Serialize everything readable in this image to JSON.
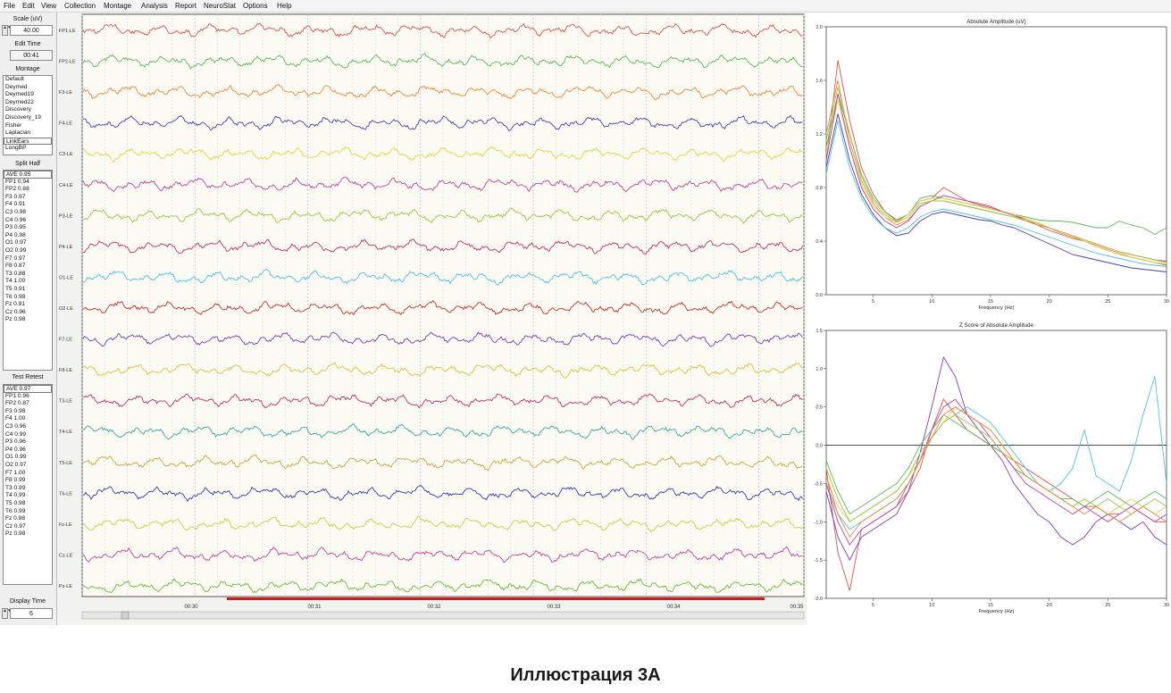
{
  "menu": [
    "File",
    "Edit",
    "View",
    "Collection",
    "Montage",
    "Analysis",
    "Report",
    "NeuroStat",
    "Options",
    "Help"
  ],
  "left_panel": {
    "scale_label": "Scale (uV)",
    "scale_value": "40.00",
    "edit_time_label": "Edit Time",
    "edit_time_value": "00:41",
    "montage_label": "Montage",
    "montages": [
      "Default",
      "Deymed",
      "Deymed19",
      "Deymed22",
      "Discovery",
      "Discovery_19",
      "Fisher",
      "Laplacian",
      "LinkEars",
      "LongBP"
    ],
    "montage_selected": 8,
    "split_half_label": "Split Half",
    "split_half": [
      "AVE 0.95",
      "FP1 0.94",
      "FP2 0.88",
      "F3 0.97",
      "F4 0.91",
      "C3 0.98",
      "C4 0.96",
      "P3 0.95",
      "P4 0.98",
      "O1 0.97",
      "O2 0.99",
      "F7 0.97",
      "F8 0.87",
      "T3 0.88",
      "T4 1.00",
      "T5 0.91",
      "T6 0.98",
      "Fz 0.91",
      "Cz 0.96",
      "Pz 0.98"
    ],
    "test_retest_label": "Test Retest",
    "test_retest": [
      "AVE 0.97",
      "FP1 0.96",
      "FP2 0.87",
      "F3 0.98",
      "F4 1.00",
      "C3 0.96",
      "C4 0.99",
      "P3 0.96",
      "P4 0.96",
      "O1 0.99",
      "O2 0.97",
      "F7 1.00",
      "F8 0.99",
      "T3 0.99",
      "T4 0.99",
      "T5 0.98",
      "T6 0.99",
      "Fz 0.98",
      "Cz 0.97",
      "Pz 0.98"
    ],
    "display_time_label": "Display Time",
    "display_time_value": "6"
  },
  "eeg": {
    "channels": [
      {
        "label": "FP1-LE",
        "color": "#d9534f"
      },
      {
        "label": "FP2-LE",
        "color": "#5cb85c"
      },
      {
        "label": "F3-LE",
        "color": "#e8893c"
      },
      {
        "label": "F4-LE",
        "color": "#4a3fb0"
      },
      {
        "label": "C3-LE",
        "color": "#e0d640"
      },
      {
        "label": "C4-LE",
        "color": "#c2449a"
      },
      {
        "label": "P3-LE",
        "color": "#9bc63c"
      },
      {
        "label": "P4-LE",
        "color": "#c0306a"
      },
      {
        "label": "O1-LE",
        "color": "#4fc3d9"
      },
      {
        "label": "O2-LE",
        "color": "#c4302b"
      },
      {
        "label": "F7-LE",
        "color": "#7a3fb5"
      },
      {
        "label": "F8-LE",
        "color": "#d9c23c"
      },
      {
        "label": "T3-LE",
        "color": "#c0306a"
      },
      {
        "label": "T4-LE",
        "color": "#3aa8a0"
      },
      {
        "label": "T5-LE",
        "color": "#c9a83c"
      },
      {
        "label": "T6-LE",
        "color": "#3a3ab0"
      },
      {
        "label": "Fz-LE",
        "color": "#bcd640"
      },
      {
        "label": "Cz-LE",
        "color": "#c2449a"
      },
      {
        "label": "Pz-LE",
        "color": "#6cb83c"
      }
    ],
    "time_ticks": [
      "00:30",
      "00:31",
      "00:32",
      "00:33",
      "00:34",
      "00:35"
    ]
  },
  "chart_data": [
    {
      "type": "line",
      "title": "Absolute Amplitude (uV)",
      "xlabel": "Frequency (Hz)",
      "ylabel": "",
      "xlim": [
        1,
        30
      ],
      "ylim": [
        0,
        2.0
      ],
      "x_ticks": [
        5,
        10,
        15,
        20,
        25,
        30
      ],
      "y_ticks": [
        "0.0",
        "0.4",
        "0.8",
        "1.2",
        "1.6",
        "2.0"
      ],
      "x": [
        1,
        2,
        3,
        4,
        5,
        6,
        7,
        8,
        9,
        10,
        11,
        12,
        13,
        14,
        15,
        16,
        17,
        18,
        19,
        20,
        21,
        22,
        23,
        24,
        25,
        26,
        27,
        28,
        29,
        30
      ],
      "series": [
        {
          "color": "#d9534f",
          "values": [
            1.0,
            1.75,
            1.3,
            0.95,
            0.75,
            0.62,
            0.55,
            0.6,
            0.7,
            0.72,
            0.8,
            0.75,
            0.7,
            0.68,
            0.66,
            0.62,
            0.6,
            0.56,
            0.52,
            0.48,
            0.45,
            0.42,
            0.4,
            0.36,
            0.33,
            0.3,
            0.28,
            0.26,
            0.24,
            0.22
          ]
        },
        {
          "color": "#5cb85c",
          "values": [
            1.1,
            1.5,
            1.2,
            0.9,
            0.72,
            0.62,
            0.56,
            0.6,
            0.72,
            0.74,
            0.72,
            0.7,
            0.68,
            0.66,
            0.64,
            0.62,
            0.6,
            0.58,
            0.56,
            0.55,
            0.55,
            0.54,
            0.52,
            0.5,
            0.5,
            0.55,
            0.52,
            0.5,
            0.45,
            0.5
          ]
        },
        {
          "color": "#e8893c",
          "values": [
            1.2,
            1.6,
            1.15,
            0.85,
            0.68,
            0.58,
            0.52,
            0.56,
            0.66,
            0.7,
            0.7,
            0.68,
            0.66,
            0.64,
            0.62,
            0.6,
            0.58,
            0.55,
            0.52,
            0.5,
            0.46,
            0.43,
            0.4,
            0.37,
            0.34,
            0.31,
            0.28,
            0.26,
            0.24,
            0.22
          ]
        },
        {
          "color": "#4a3fb0",
          "values": [
            0.95,
            1.35,
            1.0,
            0.75,
            0.6,
            0.5,
            0.44,
            0.46,
            0.55,
            0.6,
            0.62,
            0.6,
            0.58,
            0.56,
            0.55,
            0.52,
            0.5,
            0.46,
            0.42,
            0.38,
            0.34,
            0.3,
            0.28,
            0.26,
            0.24,
            0.22,
            0.2,
            0.19,
            0.18,
            0.17
          ]
        },
        {
          "color": "#e0d640",
          "values": [
            1.05,
            1.45,
            1.1,
            0.82,
            0.66,
            0.58,
            0.54,
            0.6,
            0.7,
            0.72,
            0.72,
            0.7,
            0.68,
            0.66,
            0.64,
            0.62,
            0.6,
            0.57,
            0.54,
            0.5,
            0.47,
            0.44,
            0.4,
            0.36,
            0.33,
            0.3,
            0.28,
            0.26,
            0.24,
            0.23
          ]
        },
        {
          "color": "#c2449a",
          "values": [
            1.0,
            1.5,
            1.1,
            0.8,
            0.64,
            0.55,
            0.5,
            0.55,
            0.66,
            0.7,
            0.74,
            0.72,
            0.7,
            0.67,
            0.65,
            0.62,
            0.59,
            0.56,
            0.53,
            0.5,
            0.47,
            0.44,
            0.41,
            0.38,
            0.35,
            0.32,
            0.3,
            0.28,
            0.26,
            0.25
          ]
        },
        {
          "color": "#9bc63c",
          "values": [
            1.15,
            1.55,
            1.2,
            0.88,
            0.7,
            0.6,
            0.54,
            0.58,
            0.68,
            0.7,
            0.7,
            0.68,
            0.66,
            0.64,
            0.62,
            0.6,
            0.58,
            0.56,
            0.53,
            0.5,
            0.47,
            0.44,
            0.41,
            0.38,
            0.35,
            0.32,
            0.3,
            0.28,
            0.26,
            0.24
          ]
        },
        {
          "color": "#4fc3d9",
          "values": [
            0.9,
            1.3,
            0.95,
            0.72,
            0.58,
            0.5,
            0.46,
            0.5,
            0.58,
            0.62,
            0.64,
            0.62,
            0.6,
            0.58,
            0.56,
            0.54,
            0.52,
            0.49,
            0.46,
            0.43,
            0.4,
            0.37,
            0.34,
            0.31,
            0.29,
            0.27,
            0.25,
            0.23,
            0.22,
            0.21
          ]
        }
      ]
    },
    {
      "type": "line",
      "title": "Z Score of Absolute Amplitude",
      "xlabel": "Frequency (Hz)",
      "ylabel": "",
      "xlim": [
        1,
        30
      ],
      "ylim": [
        -2.0,
        1.5
      ],
      "x_ticks": [
        5,
        10,
        15,
        20,
        25,
        30
      ],
      "y_ticks": [
        "1.5",
        "1.0",
        "0.5",
        "0.0",
        "-0.5",
        "-1.0",
        "-1.5",
        "-2.0"
      ],
      "x": [
        1,
        2,
        3,
        4,
        5,
        6,
        7,
        8,
        9,
        10,
        11,
        12,
        13,
        14,
        15,
        16,
        17,
        18,
        19,
        20,
        21,
        22,
        23,
        24,
        25,
        26,
        27,
        28,
        29,
        30
      ],
      "series": [
        {
          "color": "#d9534f",
          "values": [
            -0.3,
            -1.4,
            -1.9,
            -1.1,
            -1.0,
            -0.9,
            -0.8,
            -0.6,
            -0.3,
            0.2,
            0.6,
            0.4,
            0.2,
            0.1,
            0.0,
            -0.1,
            -0.2,
            -0.3,
            -0.4,
            -0.5,
            -0.6,
            -0.7,
            -0.8,
            -0.8,
            -0.9,
            -0.9,
            -0.8,
            -0.9,
            -1.0,
            -1.0
          ]
        },
        {
          "color": "#7a3fb5",
          "values": [
            -0.6,
            -1.2,
            -1.5,
            -1.2,
            -1.1,
            -1.0,
            -0.9,
            -0.6,
            -0.1,
            0.5,
            1.15,
            0.9,
            0.4,
            0.2,
            0.0,
            -0.2,
            -0.5,
            -0.7,
            -0.9,
            -1.0,
            -1.2,
            -1.3,
            -1.2,
            -1.0,
            -0.9,
            -1.0,
            -1.1,
            -1.0,
            -1.2,
            -1.3
          ]
        },
        {
          "color": "#4fc3d9",
          "values": [
            -0.5,
            -0.9,
            -1.1,
            -1.0,
            -0.9,
            -0.8,
            -0.7,
            -0.5,
            -0.2,
            0.1,
            0.3,
            0.4,
            0.5,
            0.4,
            0.3,
            0.1,
            -0.1,
            -0.3,
            -0.5,
            -0.6,
            -0.5,
            -0.3,
            0.2,
            -0.4,
            -0.5,
            -0.6,
            -0.2,
            0.4,
            0.9,
            -0.5
          ]
        },
        {
          "color": "#e0d640",
          "values": [
            -0.4,
            -0.8,
            -1.0,
            -0.9,
            -0.8,
            -0.7,
            -0.6,
            -0.4,
            -0.2,
            0.1,
            0.3,
            0.5,
            0.4,
            0.3,
            0.2,
            0.0,
            -0.2,
            -0.4,
            -0.5,
            -0.6,
            -0.7,
            -0.8,
            -0.7,
            -0.8,
            -0.9,
            -0.8,
            -0.7,
            -0.8,
            -0.9,
            -0.8
          ]
        },
        {
          "color": "#5cb85c",
          "values": [
            -0.2,
            -0.6,
            -0.9,
            -0.8,
            -0.7,
            -0.6,
            -0.5,
            -0.3,
            0.0,
            0.2,
            0.4,
            0.3,
            0.2,
            0.1,
            0.0,
            -0.1,
            -0.3,
            -0.4,
            -0.5,
            -0.6,
            -0.7,
            -0.7,
            -0.8,
            -0.7,
            -0.6,
            -0.7,
            -0.8,
            -0.7,
            -0.6,
            -0.7
          ]
        },
        {
          "color": "#c2449a",
          "values": [
            -0.5,
            -1.0,
            -1.3,
            -1.1,
            -1.0,
            -0.9,
            -0.8,
            -0.5,
            -0.2,
            0.2,
            0.5,
            0.6,
            0.4,
            0.3,
            0.1,
            -0.1,
            -0.3,
            -0.5,
            -0.6,
            -0.7,
            -0.8,
            -0.9,
            -0.8,
            -0.9,
            -1.0,
            -0.9,
            -0.8,
            -0.9,
            -1.0,
            -0.9
          ]
        },
        {
          "color": "#9bc63c",
          "values": [
            -0.3,
            -0.7,
            -1.0,
            -0.9,
            -0.8,
            -0.7,
            -0.6,
            -0.4,
            -0.1,
            0.1,
            0.3,
            0.4,
            0.3,
            0.2,
            0.1,
            -0.1,
            -0.2,
            -0.4,
            -0.5,
            -0.6,
            -0.7,
            -0.8,
            -0.7,
            -0.8,
            -0.7,
            -0.8,
            -0.9,
            -0.8,
            -0.7,
            -0.8
          ]
        },
        {
          "color": "#e8893c",
          "values": [
            -0.4,
            -0.9,
            -1.2,
            -1.0,
            -0.9,
            -0.8,
            -0.7,
            -0.5,
            -0.2,
            0.1,
            0.4,
            0.5,
            0.4,
            0.3,
            0.2,
            0.0,
            -0.2,
            -0.4,
            -0.5,
            -0.6,
            -0.7,
            -0.8,
            -0.9,
            -0.8,
            -0.9,
            -1.0,
            -0.9,
            -0.8,
            -0.9,
            -1.0
          ]
        }
      ]
    }
  ],
  "caption": "Иллюстрация 3А"
}
